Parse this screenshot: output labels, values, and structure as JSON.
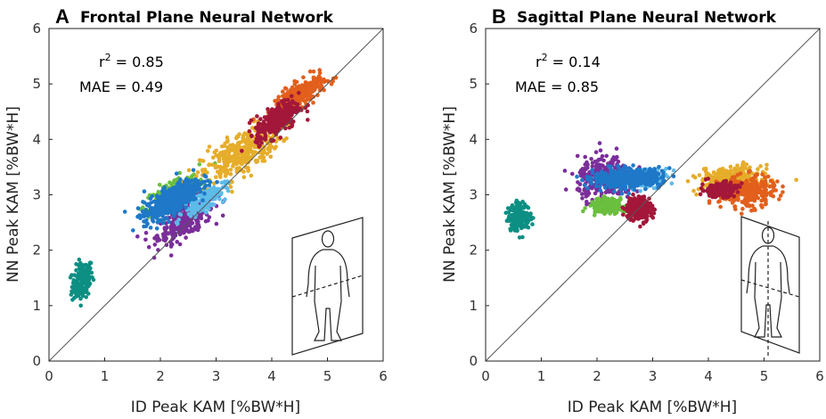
{
  "chart_data": [
    {
      "type": "scatter",
      "panel_letter": "A",
      "title": "Frontal Plane Neural Network",
      "xlabel": "ID Peak KAM [%BW*H]",
      "ylabel": "NN Peak KAM [%BW*H]",
      "xlim": [
        0,
        6
      ],
      "ylim": [
        0,
        6
      ],
      "xticks": [
        "0",
        "1",
        "2",
        "3",
        "4",
        "5",
        "6"
      ],
      "yticks": [
        "0",
        "1",
        "2",
        "3",
        "4",
        "5",
        "6"
      ],
      "identity_line": true,
      "grid": false,
      "stats": {
        "r2_label": "r",
        "r2_sup": "2",
        "r2_value": " = 0.85",
        "mae": "MAE = 0.49"
      },
      "series": [
        {
          "color": "#0d8f83",
          "cx": 0.6,
          "cy": 1.45,
          "sx": 0.17,
          "sy": 0.3,
          "n": 170
        },
        {
          "color": "#7a2e9a",
          "cx": 2.45,
          "cy": 2.55,
          "sx": 0.45,
          "sy": 0.27,
          "n": 320
        },
        {
          "color": "#6bbf3f",
          "cx": 2.2,
          "cy": 3.05,
          "sx": 0.45,
          "sy": 0.2,
          "n": 180
        },
        {
          "color": "#e6ad2a",
          "cx": 3.45,
          "cy": 3.75,
          "sx": 0.65,
          "sy": 0.35,
          "n": 360
        },
        {
          "color": "#e25f1c",
          "cx": 4.5,
          "cy": 4.8,
          "sx": 0.4,
          "sy": 0.2,
          "n": 320
        },
        {
          "color": "#5dbbe8",
          "cx": 2.8,
          "cy": 2.9,
          "sx": 0.35,
          "sy": 0.18,
          "n": 150
        },
        {
          "color": "#a3173a",
          "cx": 4.1,
          "cy": 4.35,
          "sx": 0.35,
          "sy": 0.25,
          "n": 300
        },
        {
          "color": "#1f78c8",
          "cx": 2.2,
          "cy": 2.9,
          "sx": 0.45,
          "sy": 0.22,
          "n": 560
        }
      ]
    },
    {
      "type": "scatter",
      "panel_letter": "B",
      "title": "Sagittal Plane Neural Network",
      "xlabel": "ID Peak KAM [%BW*H]",
      "ylabel": "NN Peak KAM [%BW*H]",
      "xlim": [
        0,
        6
      ],
      "ylim": [
        0,
        6
      ],
      "xticks": [
        "0",
        "1",
        "2",
        "3",
        "4",
        "5",
        "6"
      ],
      "yticks": [
        "0",
        "1",
        "2",
        "3",
        "4",
        "5",
        "6"
      ],
      "identity_line": true,
      "grid": false,
      "stats": {
        "r2_label": "r",
        "r2_sup": "2",
        "r2_value": " = 0.14",
        "mae": "MAE = 0.85"
      },
      "series": [
        {
          "color": "#0d8f83",
          "cx": 0.6,
          "cy": 2.6,
          "sx": 0.18,
          "sy": 0.22,
          "n": 200
        },
        {
          "color": "#7a2e9a",
          "cx": 2.15,
          "cy": 3.3,
          "sx": 0.45,
          "sy": 0.35,
          "n": 320
        },
        {
          "color": "#6bbf3f",
          "cx": 2.2,
          "cy": 2.8,
          "sx": 0.3,
          "sy": 0.12,
          "n": 180
        },
        {
          "color": "#e6ad2a",
          "cx": 4.4,
          "cy": 3.3,
          "sx": 0.5,
          "sy": 0.18,
          "n": 260
        },
        {
          "color": "#e25f1c",
          "cx": 4.7,
          "cy": 3.05,
          "sx": 0.45,
          "sy": 0.25,
          "n": 300
        },
        {
          "color": "#5dbbe8",
          "cx": 2.9,
          "cy": 3.3,
          "sx": 0.35,
          "sy": 0.15,
          "n": 150
        },
        {
          "color": "#a3173a",
          "cx": 2.75,
          "cy": 2.75,
          "sx": 0.22,
          "sy": 0.2,
          "n": 200
        },
        {
          "color": "#a3173a",
          "cx": 4.2,
          "cy": 3.1,
          "sx": 0.3,
          "sy": 0.12,
          "n": 150
        },
        {
          "color": "#1f78c8",
          "cx": 2.55,
          "cy": 3.3,
          "sx": 0.55,
          "sy": 0.15,
          "n": 520
        }
      ]
    }
  ]
}
